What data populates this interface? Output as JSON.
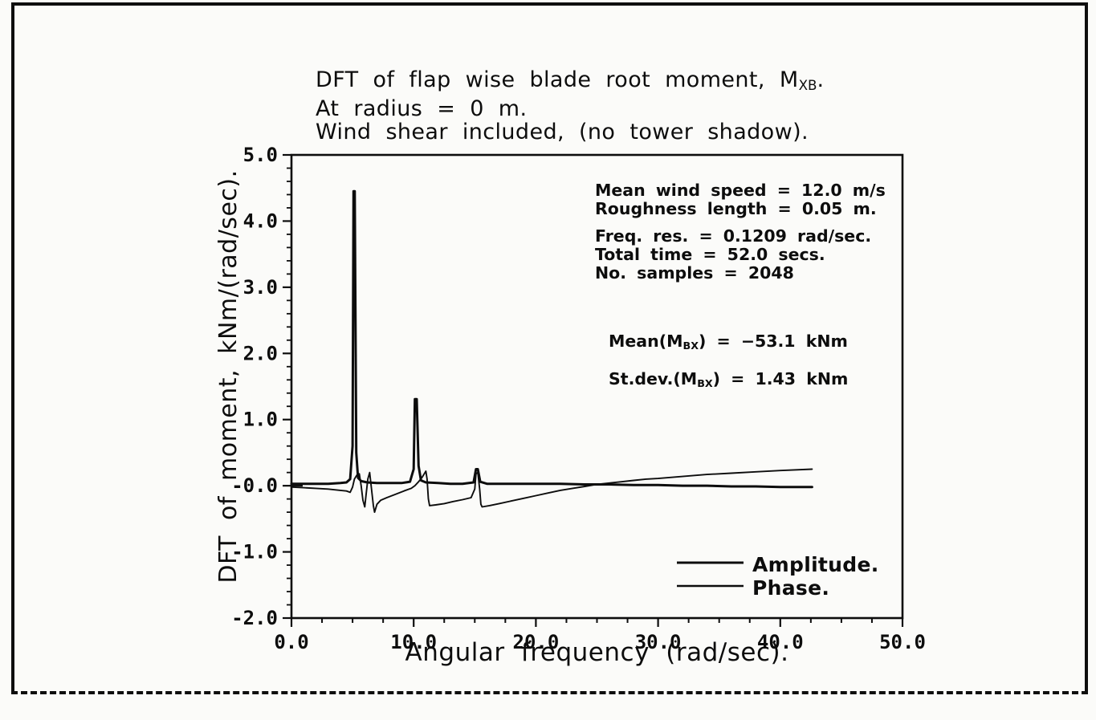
{
  "figure": {
    "title_lines": [
      {
        "pre": "DFT of flap wise blade root moment, M",
        "sub": "XB",
        "post": "."
      },
      {
        "text": "At radius = 0 m."
      },
      {
        "text": "Wind shear included, (no tower shadow)."
      }
    ],
    "parameters_wind": [
      "Mean wind speed = 12.0 m/s",
      "Roughness length = 0.05 m."
    ],
    "parameters_dft": [
      "Freq. res. = 0.1209 rad/sec.",
      "Total time = 52.0 secs.",
      "No. samples = 2048"
    ],
    "stats": [
      {
        "pre": "Mean(M",
        "sub": "BX",
        "post": ") = −53.1 kNm"
      },
      {
        "pre": "St.dev.(M",
        "sub": "BX",
        "post": ") = 1.43 kNm"
      }
    ],
    "ink_color": "#0d0d0d",
    "paper_color": "#fbfbf9"
  },
  "chart_data": {
    "type": "line",
    "title": "DFT of flap wise blade root moment, MXB. At radius = 0 m. Wind shear included, (no tower shadow).",
    "xlabel": "Angular frequency (rad/sec).",
    "ylabel": "DFT of moment, kNm/(rad/sec).",
    "xlim": [
      0,
      50
    ],
    "ylim": [
      -2,
      5
    ],
    "xtick_values": [
      0,
      10,
      20,
      30,
      40,
      50
    ],
    "xtick_labels": [
      "0.0",
      "10.0",
      "20.0",
      "30.0",
      "40.0",
      "50.0"
    ],
    "ytick_values": [
      5,
      4,
      3,
      2,
      1,
      0,
      -1,
      -2
    ],
    "ytick_labels": [
      "5.0",
      "4.0",
      "3.0",
      "2.0",
      "1.0",
      "-0.0",
      "-1.0",
      "-2.0"
    ],
    "x_minor_step": 2.5,
    "y_minor_step": 0.2,
    "grid": false,
    "legend": {
      "position": "lower right",
      "entries": [
        "Amplitude.",
        "Phase."
      ]
    },
    "series": [
      {
        "name": "Amplitude.",
        "points": [
          [
            0,
            0.03
          ],
          [
            1,
            0.03
          ],
          [
            2,
            0.03
          ],
          [
            3,
            0.03
          ],
          [
            4,
            0.04
          ],
          [
            4.5,
            0.05
          ],
          [
            4.8,
            0.1
          ],
          [
            5.0,
            0.6
          ],
          [
            5.08,
            4.45
          ],
          [
            5.18,
            4.45
          ],
          [
            5.3,
            0.5
          ],
          [
            5.45,
            0.12
          ],
          [
            5.7,
            0.07
          ],
          [
            6.2,
            0.05
          ],
          [
            7,
            0.04
          ],
          [
            8,
            0.04
          ],
          [
            9,
            0.04
          ],
          [
            9.7,
            0.06
          ],
          [
            10.0,
            0.25
          ],
          [
            10.1,
            1.31
          ],
          [
            10.25,
            1.31
          ],
          [
            10.4,
            0.3
          ],
          [
            10.6,
            0.08
          ],
          [
            11,
            0.05
          ],
          [
            12,
            0.04
          ],
          [
            13,
            0.03
          ],
          [
            14,
            0.03
          ],
          [
            14.9,
            0.05
          ],
          [
            15.1,
            0.25
          ],
          [
            15.25,
            0.25
          ],
          [
            15.45,
            0.06
          ],
          [
            16,
            0.03
          ],
          [
            18,
            0.03
          ],
          [
            20,
            0.03
          ],
          [
            22,
            0.03
          ],
          [
            24,
            0.02
          ],
          [
            26,
            0.02
          ],
          [
            28,
            0.01
          ],
          [
            30,
            0.01
          ],
          [
            32,
            0.0
          ],
          [
            34,
            0.0
          ],
          [
            36,
            -0.01
          ],
          [
            38,
            -0.01
          ],
          [
            40,
            -0.02
          ],
          [
            42.6,
            -0.02
          ]
        ]
      },
      {
        "name": "Phase.",
        "points": [
          [
            0,
            -0.02
          ],
          [
            1,
            -0.03
          ],
          [
            2,
            -0.04
          ],
          [
            3,
            -0.05
          ],
          [
            4,
            -0.07
          ],
          [
            4.5,
            -0.08
          ],
          [
            4.8,
            -0.1
          ],
          [
            5.0,
            -0.02
          ],
          [
            5.15,
            0.1
          ],
          [
            5.35,
            0.16
          ],
          [
            5.55,
            0.18
          ],
          [
            5.7,
            0.0
          ],
          [
            5.85,
            -0.22
          ],
          [
            6.0,
            -0.32
          ],
          [
            6.1,
            -0.15
          ],
          [
            6.25,
            0.1
          ],
          [
            6.4,
            0.2
          ],
          [
            6.55,
            -0.05
          ],
          [
            6.7,
            -0.3
          ],
          [
            6.8,
            -0.4
          ],
          [
            7.0,
            -0.28
          ],
          [
            7.3,
            -0.22
          ],
          [
            7.8,
            -0.18
          ],
          [
            8.5,
            -0.13
          ],
          [
            9.2,
            -0.08
          ],
          [
            9.8,
            -0.04
          ],
          [
            10.1,
            0.0
          ],
          [
            10.4,
            0.06
          ],
          [
            10.7,
            0.13
          ],
          [
            11.0,
            0.22
          ],
          [
            11.1,
            0.1
          ],
          [
            11.2,
            -0.2
          ],
          [
            11.3,
            -0.3
          ],
          [
            11.8,
            -0.29
          ],
          [
            12.5,
            -0.27
          ],
          [
            13.2,
            -0.24
          ],
          [
            14.0,
            -0.21
          ],
          [
            14.7,
            -0.18
          ],
          [
            15.0,
            -0.05
          ],
          [
            15.1,
            0.18
          ],
          [
            15.25,
            0.2
          ],
          [
            15.4,
            -0.05
          ],
          [
            15.5,
            -0.28
          ],
          [
            15.6,
            -0.32
          ],
          [
            16.2,
            -0.3
          ],
          [
            17,
            -0.27
          ],
          [
            18,
            -0.23
          ],
          [
            19,
            -0.19
          ],
          [
            20,
            -0.15
          ],
          [
            21,
            -0.11
          ],
          [
            22,
            -0.07
          ],
          [
            23,
            -0.04
          ],
          [
            24,
            -0.01
          ],
          [
            25,
            0.02
          ],
          [
            26,
            0.04
          ],
          [
            27,
            0.06
          ],
          [
            28,
            0.08
          ],
          [
            29,
            0.1
          ],
          [
            30,
            0.11
          ],
          [
            32,
            0.14
          ],
          [
            34,
            0.17
          ],
          [
            36,
            0.19
          ],
          [
            38,
            0.21
          ],
          [
            40,
            0.23
          ],
          [
            42.6,
            0.25
          ]
        ]
      }
    ]
  }
}
